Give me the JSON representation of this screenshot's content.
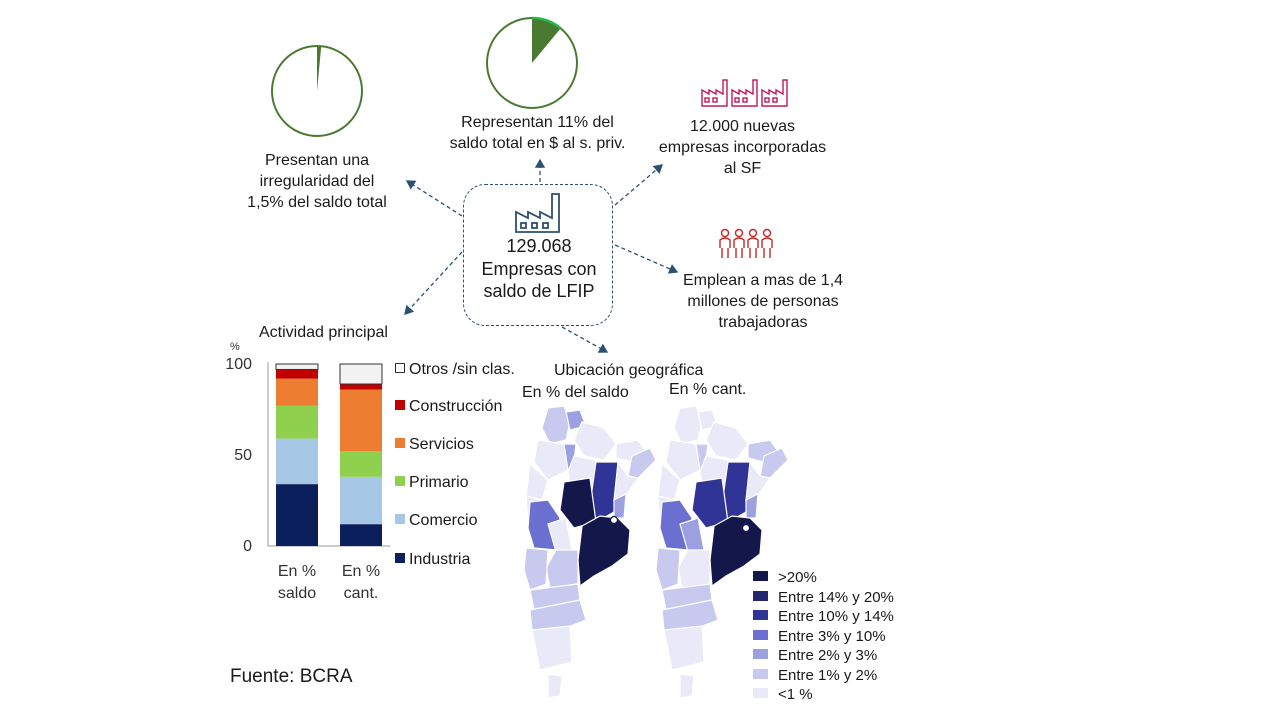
{
  "center": {
    "count": "129.068",
    "label_line1": "Empresas con",
    "label_line2": "saldo de LFIP"
  },
  "callouts": {
    "irregular": {
      "line1": "Presentan una",
      "line2": "irregularidad del",
      "line3": "1,5% del saldo total",
      "pct": 1.5
    },
    "share": {
      "line1": "Representan 11% del",
      "line2": "saldo total en $ al s. priv.",
      "pct": 11
    },
    "new": {
      "line1": "12.000 nuevas",
      "line2": "empresas incorporadas",
      "line3": "al SF"
    },
    "employ": {
      "line1": "Emplean a mas de 1,4",
      "line2": "millones de personas",
      "line3": "trabajadoras"
    }
  },
  "colors": {
    "pie_green_dark": "#4a7a32",
    "pie_green_accent": "#22b84a",
    "factory_pink": "#c2185b",
    "people_red": "#c62828",
    "industry": "#0b1f5c",
    "commerce": "#a7c7e7",
    "primary": "#8fd14f",
    "services": "#ed7d31",
    "construction": "#c00000",
    "others": "#f2f2f2",
    "dash": "#2c4f74"
  },
  "chart_data": {
    "type": "bar",
    "stacked": true,
    "title": "Actividad principal",
    "ylabel": "%",
    "ylim": [
      0,
      100
    ],
    "yticks": [
      0,
      50,
      100
    ],
    "categories": [
      "En % saldo",
      "En % cant."
    ],
    "category_lines": [
      [
        "En %",
        "saldo"
      ],
      [
        "En %",
        "cant."
      ]
    ],
    "series": [
      {
        "name": "Industria",
        "values": [
          34,
          12
        ]
      },
      {
        "name": "Comercio",
        "values": [
          25,
          26
        ]
      },
      {
        "name": "Primario",
        "values": [
          18,
          14
        ]
      },
      {
        "name": "Servicios",
        "values": [
          15,
          34
        ]
      },
      {
        "name": "Construcción",
        "values": [
          5,
          3
        ]
      },
      {
        "name": "Otros /sin clas.",
        "values": [
          3,
          11
        ]
      }
    ],
    "legend_order": [
      "Otros /sin clas.",
      "Construcción",
      "Servicios",
      "Primario",
      "Comercio",
      "Industria"
    ]
  },
  "maps": {
    "title": "Ubicación geográfica",
    "left_subtitle": "En % del saldo",
    "right_subtitle": "En % cant.",
    "legend": [
      {
        "label": ">20%",
        "color": "#14174a"
      },
      {
        "label": "Entre 14% y 20%",
        "color": "#23266e"
      },
      {
        "label": "Entre 10% y 14%",
        "color": "#2f3496"
      },
      {
        "label": "Entre 3% y 10%",
        "color": "#6a6fd0"
      },
      {
        "label": "Entre 2% y 3%",
        "color": "#9c9fe0"
      },
      {
        "label": "Entre 1% y 2%",
        "color": "#c8c9ee"
      },
      {
        "label": "<1 %",
        "color": "#e9e9f8"
      }
    ]
  },
  "source": "Fuente: BCRA"
}
